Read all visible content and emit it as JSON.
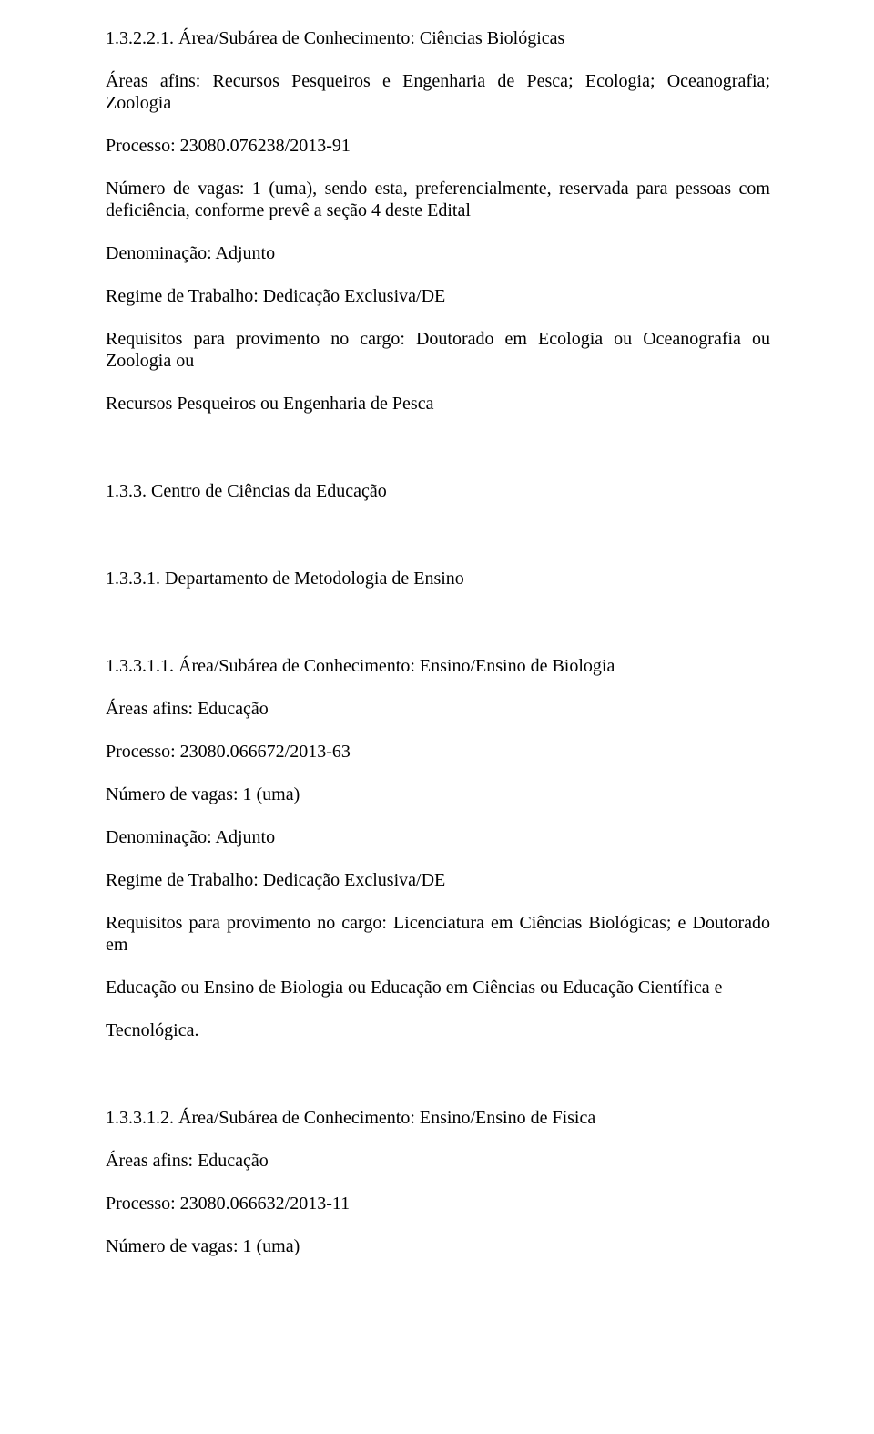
{
  "s1": {
    "num": "1.3.2.2.1. Área/Subárea de Conhecimento: Ciências Biológicas",
    "areas": "Áreas afins: Recursos Pesqueiros e Engenharia de Pesca; Ecologia; Oceanografia; Zoologia",
    "proc": "Processo: 23080.076238/2013-91",
    "vagas": "Número de vagas: 1 (uma), sendo esta, preferencialmente, reservada para pessoas com deficiência, conforme prevê a seção 4 deste Edital",
    "denom": "Denominação: Adjunto",
    "regime": "Regime de Trabalho: Dedicação Exclusiva/DE",
    "req": "Requisitos para provimento no cargo: Doutorado em Ecologia ou Oceanografia ou Zoologia ou",
    "req2": "Recursos Pesqueiros ou Engenharia de Pesca"
  },
  "h133": "1.3.3. Centro de Ciências da Educação",
  "h1331": "1.3.3.1. Departamento de Metodologia de Ensino",
  "s2": {
    "num": "1.3.3.1.1. Área/Subárea de Conhecimento: Ensino/Ensino de Biologia",
    "areas": "Áreas afins: Educação",
    "proc": "Processo: 23080.066672/2013-63",
    "vagas": "Número de vagas: 1 (uma)",
    "denom": "Denominação: Adjunto",
    "regime": "Regime de Trabalho: Dedicação Exclusiva/DE",
    "req": "Requisitos para provimento no cargo: Licenciatura em Ciências Biológicas; e Doutorado em",
    "req2": "Educação ou Ensino de Biologia ou Educação em Ciências ou Educação Científica e",
    "req3": "Tecnológica."
  },
  "s3": {
    "num": "1.3.3.1.2. Área/Subárea de Conhecimento: Ensino/Ensino de Física",
    "areas": "Áreas afins: Educação",
    "proc": "Processo: 23080.066632/2013-11",
    "vagas": "Número de vagas: 1 (uma)"
  }
}
